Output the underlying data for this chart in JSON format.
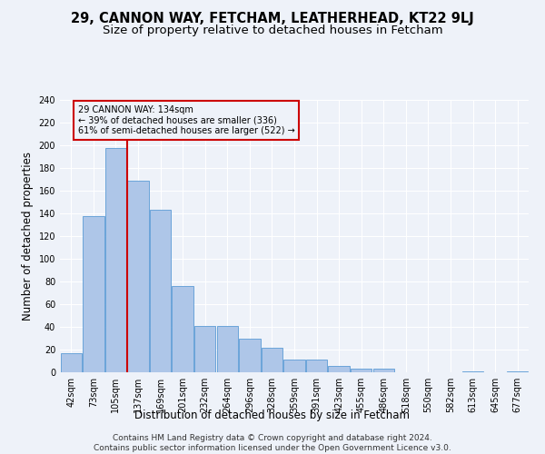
{
  "title": "29, CANNON WAY, FETCHAM, LEATHERHEAD, KT22 9LJ",
  "subtitle": "Size of property relative to detached houses in Fetcham",
  "xlabel": "Distribution of detached houses by size in Fetcham",
  "ylabel": "Number of detached properties",
  "bar_labels": [
    "42sqm",
    "73sqm",
    "105sqm",
    "137sqm",
    "169sqm",
    "201sqm",
    "232sqm",
    "264sqm",
    "296sqm",
    "328sqm",
    "359sqm",
    "391sqm",
    "423sqm",
    "455sqm",
    "486sqm",
    "518sqm",
    "550sqm",
    "582sqm",
    "613sqm",
    "645sqm",
    "677sqm"
  ],
  "bar_values": [
    17,
    138,
    198,
    169,
    143,
    76,
    41,
    41,
    30,
    22,
    11,
    11,
    6,
    3,
    3,
    0,
    0,
    0,
    1,
    0,
    1
  ],
  "bar_color": "#aec6e8",
  "bar_edgecolor": "#5b9bd5",
  "vline_color": "#cc0000",
  "annotation_title": "29 CANNON WAY: 134sqm",
  "annotation_line1": "← 39% of detached houses are smaller (336)",
  "annotation_line2": "61% of semi-detached houses are larger (522) →",
  "annotation_box_edgecolor": "#cc0000",
  "ylim": [
    0,
    240
  ],
  "yticks": [
    0,
    20,
    40,
    60,
    80,
    100,
    120,
    140,
    160,
    180,
    200,
    220,
    240
  ],
  "footer": "Contains HM Land Registry data © Crown copyright and database right 2024.\nContains public sector information licensed under the Open Government Licence v3.0.",
  "background_color": "#eef2f9",
  "grid_color": "#ffffff",
  "title_fontsize": 10.5,
  "subtitle_fontsize": 9.5,
  "tick_fontsize": 7,
  "ylabel_fontsize": 8.5,
  "xlabel_fontsize": 8.5,
  "footer_fontsize": 6.5
}
